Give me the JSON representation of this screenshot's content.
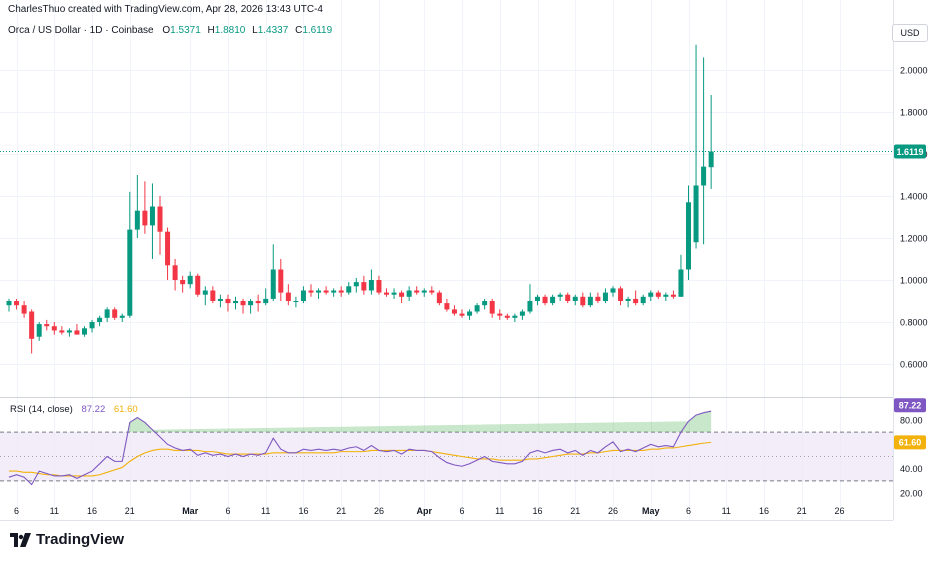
{
  "header": {
    "attribution": "CharlesThuo created with TradingView.com, Apr 28, 2026 13:43 UTC-4",
    "symbol": "Orca / US Dollar · 1D · Coinbase",
    "o_label": "O",
    "o_value": "1.5371",
    "h_label": "H",
    "h_value": "1.8810",
    "l_label": "L",
    "l_value": "1.4337",
    "c_label": "C",
    "c_value": "1.6119",
    "currency": "USD"
  },
  "rsi_legend": {
    "label": "RSI (14, close)",
    "rsi_value": "87.22",
    "ma_value": "61.60"
  },
  "brand": {
    "name": "TradingView"
  },
  "colors": {
    "up": "#089981",
    "down": "#f23645",
    "rsi": "#7e57c2",
    "rsi_ma": "#f2b10b",
    "band": "#ede7f6"
  },
  "chart_data": [
    {
      "type": "candlestick",
      "title": "Orca / US Dollar · 1D · Coinbase",
      "ylim": [
        0.5,
        2.2
      ],
      "yticks": [
        "2.0000",
        "1.8000",
        "1.6000",
        "1.4000",
        "1.2000",
        "1.0000",
        "0.8000",
        "0.6000"
      ],
      "last_price_label": "1.6119",
      "ohlc_columns": [
        "open",
        "high",
        "low",
        "close"
      ],
      "candles": [
        [
          0.88,
          0.91,
          0.85,
          0.9
        ],
        [
          0.9,
          0.91,
          0.86,
          0.88
        ],
        [
          0.88,
          0.9,
          0.82,
          0.84
        ],
        [
          0.85,
          0.86,
          0.65,
          0.72
        ],
        [
          0.73,
          0.8,
          0.71,
          0.79
        ],
        [
          0.79,
          0.81,
          0.76,
          0.78
        ],
        [
          0.78,
          0.8,
          0.74,
          0.76
        ],
        [
          0.76,
          0.78,
          0.74,
          0.75
        ],
        [
          0.75,
          0.77,
          0.73,
          0.76
        ],
        [
          0.76,
          0.79,
          0.74,
          0.74
        ],
        [
          0.74,
          0.78,
          0.73,
          0.77
        ],
        [
          0.77,
          0.81,
          0.75,
          0.8
        ],
        [
          0.8,
          0.83,
          0.78,
          0.82
        ],
        [
          0.82,
          0.87,
          0.8,
          0.86
        ],
        [
          0.86,
          0.87,
          0.81,
          0.82
        ],
        [
          0.82,
          0.84,
          0.8,
          0.83
        ],
        [
          0.83,
          1.42,
          0.82,
          1.24
        ],
        [
          1.24,
          1.5,
          1.2,
          1.33
        ],
        [
          1.33,
          1.47,
          1.22,
          1.26
        ],
        [
          1.26,
          1.46,
          1.1,
          1.35
        ],
        [
          1.35,
          1.4,
          1.12,
          1.23
        ],
        [
          1.23,
          1.25,
          1.0,
          1.07
        ],
        [
          1.07,
          1.1,
          0.95,
          1.0
        ],
        [
          1.0,
          1.02,
          0.94,
          0.98
        ],
        [
          0.98,
          1.04,
          0.96,
          1.02
        ],
        [
          1.02,
          1.03,
          0.92,
          0.93
        ],
        [
          0.93,
          0.97,
          0.88,
          0.95
        ],
        [
          0.95,
          0.97,
          0.89,
          0.9
        ],
        [
          0.9,
          0.93,
          0.87,
          0.91
        ],
        [
          0.91,
          0.93,
          0.85,
          0.89
        ],
        [
          0.89,
          0.92,
          0.86,
          0.9
        ],
        [
          0.9,
          0.91,
          0.84,
          0.88
        ],
        [
          0.88,
          0.91,
          0.84,
          0.9
        ],
        [
          0.9,
          0.93,
          0.85,
          0.89
        ],
        [
          0.89,
          0.96,
          0.88,
          0.91
        ],
        [
          0.91,
          1.17,
          0.9,
          1.05
        ],
        [
          1.05,
          1.1,
          0.9,
          0.94
        ],
        [
          0.94,
          0.98,
          0.88,
          0.9
        ],
        [
          0.9,
          0.92,
          0.87,
          0.9
        ],
        [
          0.9,
          0.97,
          0.89,
          0.95
        ],
        [
          0.95,
          0.98,
          0.92,
          0.94
        ],
        [
          0.94,
          0.96,
          0.91,
          0.95
        ],
        [
          0.95,
          0.97,
          0.93,
          0.94
        ],
        [
          0.94,
          0.96,
          0.92,
          0.95
        ],
        [
          0.95,
          0.97,
          0.92,
          0.94
        ],
        [
          0.94,
          0.99,
          0.93,
          0.97
        ],
        [
          0.97,
          1.01,
          0.94,
          0.99
        ],
        [
          0.99,
          1.02,
          0.93,
          0.95
        ],
        [
          0.95,
          1.05,
          0.93,
          1.0
        ],
        [
          1.0,
          1.02,
          0.93,
          0.94
        ],
        [
          0.94,
          0.96,
          0.92,
          0.93
        ],
        [
          0.93,
          0.96,
          0.91,
          0.94
        ],
        [
          0.94,
          0.95,
          0.89,
          0.92
        ],
        [
          0.92,
          0.97,
          0.9,
          0.95
        ],
        [
          0.95,
          0.97,
          0.93,
          0.94
        ],
        [
          0.94,
          0.96,
          0.92,
          0.95
        ],
        [
          0.95,
          0.97,
          0.93,
          0.94
        ],
        [
          0.94,
          0.95,
          0.88,
          0.89
        ],
        [
          0.89,
          0.91,
          0.85,
          0.86
        ],
        [
          0.86,
          0.88,
          0.83,
          0.84
        ],
        [
          0.84,
          0.86,
          0.82,
          0.83
        ],
        [
          0.83,
          0.86,
          0.81,
          0.85
        ],
        [
          0.85,
          0.89,
          0.84,
          0.88
        ],
        [
          0.88,
          0.91,
          0.86,
          0.9
        ],
        [
          0.9,
          0.91,
          0.82,
          0.84
        ],
        [
          0.84,
          0.86,
          0.81,
          0.83
        ],
        [
          0.83,
          0.84,
          0.81,
          0.82
        ],
        [
          0.82,
          0.84,
          0.8,
          0.83
        ],
        [
          0.83,
          0.86,
          0.81,
          0.85
        ],
        [
          0.85,
          0.98,
          0.84,
          0.9
        ],
        [
          0.9,
          0.93,
          0.88,
          0.92
        ],
        [
          0.92,
          0.93,
          0.88,
          0.89
        ],
        [
          0.89,
          0.93,
          0.88,
          0.92
        ],
        [
          0.92,
          0.94,
          0.9,
          0.93
        ],
        [
          0.93,
          0.94,
          0.89,
          0.9
        ],
        [
          0.9,
          0.93,
          0.88,
          0.92
        ],
        [
          0.92,
          0.94,
          0.87,
          0.88
        ],
        [
          0.88,
          0.94,
          0.87,
          0.92
        ],
        [
          0.92,
          0.94,
          0.89,
          0.9
        ],
        [
          0.9,
          0.96,
          0.89,
          0.94
        ],
        [
          0.94,
          0.97,
          0.92,
          0.96
        ],
        [
          0.96,
          0.97,
          0.88,
          0.9
        ],
        [
          0.9,
          0.92,
          0.87,
          0.91
        ],
        [
          0.91,
          0.95,
          0.88,
          0.89
        ],
        [
          0.89,
          0.93,
          0.88,
          0.92
        ],
        [
          0.92,
          0.95,
          0.9,
          0.94
        ],
        [
          0.94,
          0.95,
          0.91,
          0.92
        ],
        [
          0.92,
          0.94,
          0.9,
          0.93
        ],
        [
          0.93,
          0.95,
          0.91,
          0.92
        ],
        [
          0.92,
          1.12,
          0.92,
          1.05
        ],
        [
          1.05,
          1.45,
          1.0,
          1.37
        ],
        [
          1.18,
          2.12,
          1.15,
          1.45
        ],
        [
          1.45,
          2.06,
          1.17,
          1.54
        ],
        [
          1.5371,
          1.881,
          1.4337,
          1.6119
        ]
      ],
      "x_tick_labels": [
        {
          "label": "6",
          "index": 1
        },
        {
          "label": "11",
          "index": 6
        },
        {
          "label": "16",
          "index": 11
        },
        {
          "label": "21",
          "index": 16
        },
        {
          "label": "Mar",
          "index": 24
        },
        {
          "label": "6",
          "index": 29
        },
        {
          "label": "11",
          "index": 34
        },
        {
          "label": "16",
          "index": 39
        },
        {
          "label": "21",
          "index": 44
        },
        {
          "label": "26",
          "index": 49
        },
        {
          "label": "Apr",
          "index": 55
        },
        {
          "label": "6",
          "index": 60
        },
        {
          "label": "11",
          "index": 65
        },
        {
          "label": "16",
          "index": 70
        },
        {
          "label": "21",
          "index": 75
        },
        {
          "label": "26",
          "index": 80
        },
        {
          "label": "May",
          "index": 85
        },
        {
          "label": "6",
          "index": 90
        },
        {
          "label": "11",
          "index": 95
        },
        {
          "label": "16",
          "index": 100
        },
        {
          "label": "21",
          "index": 105
        },
        {
          "label": "26",
          "index": 110
        }
      ]
    },
    {
      "type": "line",
      "title": "RSI (14, close)",
      "ylim": [
        15,
        90
      ],
      "yticks": [
        "80.00",
        "40.00",
        "20.00"
      ],
      "bands": [
        30,
        50,
        70
      ],
      "series": [
        {
          "name": "RSI",
          "values": [
            33,
            35,
            33,
            27,
            38,
            36,
            34,
            34,
            35,
            32,
            35,
            38,
            44,
            50,
            46,
            46,
            78,
            82,
            78,
            72,
            66,
            60,
            57,
            55,
            56,
            51,
            53,
            51,
            52,
            50,
            52,
            50,
            52,
            51,
            53,
            65,
            56,
            53,
            53,
            56,
            55,
            56,
            55,
            56,
            55,
            57,
            58,
            55,
            59,
            55,
            54,
            55,
            52,
            56,
            55,
            55,
            54,
            49,
            45,
            43,
            42,
            44,
            47,
            50,
            46,
            45,
            44,
            44,
            46,
            53,
            55,
            53,
            55,
            56,
            53,
            55,
            51,
            55,
            53,
            58,
            62,
            54,
            56,
            54,
            57,
            60,
            58,
            59,
            58,
            70,
            79,
            84,
            86,
            87.22
          ],
          "last_value_label": "87.22"
        },
        {
          "name": "RSI-based MA",
          "values": [
            38,
            38,
            37,
            37,
            36,
            35,
            35,
            34,
            34,
            34,
            34,
            34,
            35,
            37,
            39,
            41,
            46,
            50,
            53,
            55,
            56,
            56,
            55,
            55,
            55,
            55,
            54,
            54,
            53,
            52,
            52,
            52,
            52,
            52,
            52,
            53,
            53,
            53,
            53,
            53,
            53,
            53,
            53,
            53,
            54,
            54,
            54,
            54,
            55,
            55,
            55,
            55,
            55,
            55,
            55,
            55,
            54,
            53,
            52,
            51,
            50,
            49,
            48,
            48,
            48,
            47,
            47,
            47,
            47,
            48,
            48,
            49,
            50,
            51,
            52,
            52,
            52,
            53,
            53,
            54,
            55,
            55,
            55,
            55,
            55,
            56,
            56,
            57,
            57,
            58,
            59,
            60,
            61,
            61.6
          ],
          "last_value_label": "61.60"
        }
      ]
    }
  ]
}
